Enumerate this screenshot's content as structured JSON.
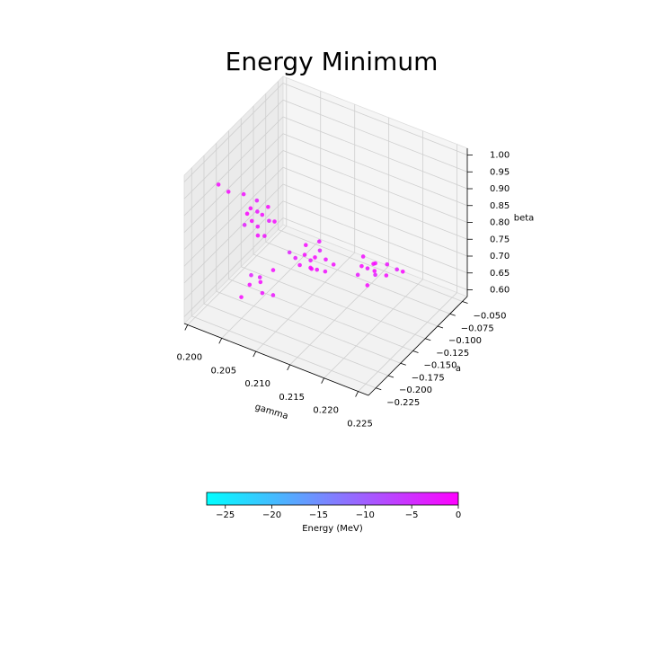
{
  "chart_data": {
    "type": "scatter3d",
    "title": "Energy Minimum",
    "xlabel": "gamma",
    "ylabel": "a",
    "zlabel": "beta",
    "xlim": [
      0.1995,
      0.2265
    ],
    "ylim": [
      -0.24,
      -0.04
    ],
    "zlim": [
      0.58,
      1.02
    ],
    "xticks": [
      {
        "value": 0.2,
        "label": "0.200"
      },
      {
        "value": 0.205,
        "label": "0.205"
      },
      {
        "value": 0.21,
        "label": "0.210"
      },
      {
        "value": 0.215,
        "label": "0.215"
      },
      {
        "value": 0.22,
        "label": "0.220"
      },
      {
        "value": 0.225,
        "label": "0.225"
      }
    ],
    "yticks": [
      {
        "value": -0.225,
        "label": "−0.225"
      },
      {
        "value": -0.2,
        "label": "−0.200"
      },
      {
        "value": -0.175,
        "label": "−0.175"
      },
      {
        "value": -0.15,
        "label": "−0.150"
      },
      {
        "value": -0.125,
        "label": "−0.125"
      },
      {
        "value": -0.1,
        "label": "−0.100"
      },
      {
        "value": -0.075,
        "label": "−0.075"
      },
      {
        "value": -0.05,
        "label": "−0.050"
      }
    ],
    "zticks": [
      {
        "value": 0.6,
        "label": "0.60"
      },
      0.65,
      {
        "value": 0.7,
        "label": "0.70"
      },
      0.75,
      {
        "value": 0.8,
        "label": "0.80"
      },
      0.85,
      {
        "value": 0.9,
        "label": "0.90"
      },
      0.95,
      {
        "value": 1.0,
        "label": "1.00"
      }
    ],
    "grid": true,
    "colorbar_label": "Energy (MeV)",
    "clim": [
      -27,
      0
    ],
    "cticks": [
      {
        "value": -25,
        "label": "−25"
      },
      {
        "value": -20,
        "label": "−20"
      },
      {
        "value": -15,
        "label": "−15"
      },
      {
        "value": -10,
        "label": "−10"
      },
      {
        "value": -5,
        "label": "−5"
      },
      0
    ],
    "colormap": [
      "#00ffff",
      "#ff00ff"
    ],
    "x": [
      0.2009,
      0.202,
      0.2035,
      0.2043,
      0.205,
      0.2047,
      0.2055,
      0.204,
      0.206,
      0.2052,
      0.2065,
      0.2038,
      0.2058,
      0.2045,
      0.2068,
      0.2062,
      0.211,
      0.2115,
      0.212,
      0.2105,
      0.2125,
      0.2118,
      0.213,
      0.21,
      0.2112,
      0.2128,
      0.2122,
      0.2108,
      0.2135,
      0.2095,
      0.214,
      0.215,
      0.2155,
      0.216,
      0.2148,
      0.2165,
      0.2158,
      0.217,
      0.2145,
      0.2162,
      0.2175,
      0.2168,
      0.218,
      0.2185,
      0.208,
      0.209,
      0.2085,
      0.2095,
      0.2075,
      0.21,
      0.207,
      0.2105
    ],
    "y": [
      -0.19,
      -0.185,
      -0.175,
      -0.172,
      -0.168,
      -0.175,
      -0.165,
      -0.18,
      -0.16,
      -0.17,
      -0.165,
      -0.172,
      -0.178,
      -0.162,
      -0.158,
      -0.17,
      -0.155,
      -0.15,
      -0.148,
      -0.158,
      -0.145,
      -0.152,
      -0.14,
      -0.16,
      -0.146,
      -0.155,
      -0.142,
      -0.15,
      -0.148,
      -0.165,
      -0.138,
      -0.095,
      -0.09,
      -0.085,
      -0.1,
      -0.088,
      -0.08,
      -0.095,
      -0.085,
      -0.1,
      -0.078,
      -0.07,
      -0.065,
      -0.06,
      -0.225,
      -0.218,
      -0.21,
      -0.22,
      -0.215,
      -0.205,
      -0.228,
      -0.212
    ],
    "z": [
      0.93,
      0.91,
      0.9,
      0.86,
      0.85,
      0.83,
      0.84,
      0.82,
      0.86,
      0.81,
      0.83,
      0.84,
      0.8,
      0.87,
      0.82,
      0.79,
      0.75,
      0.73,
      0.74,
      0.72,
      0.76,
      0.71,
      0.73,
      0.74,
      0.7,
      0.72,
      0.78,
      0.77,
      0.71,
      0.76,
      0.72,
      0.66,
      0.65,
      0.66,
      0.64,
      0.67,
      0.63,
      0.65,
      0.67,
      0.62,
      0.66,
      0.61,
      0.63,
      0.62,
      0.74,
      0.76,
      0.73,
      0.72,
      0.75,
      0.77,
      0.7,
      0.71
    ],
    "c": [
      -1.2,
      -0.8,
      -1.5,
      -0.6,
      -2.1,
      -0.9,
      -1.3,
      -3.0,
      -0.7,
      -1.8,
      -2.4,
      -0.5,
      -1.1,
      -2.7,
      -0.9,
      -1.6,
      -1.0,
      -2.2,
      -0.7,
      -1.4,
      -3.1,
      -0.9,
      -1.7,
      -2.5,
      -0.6,
      -1.2,
      -2.0,
      -0.8,
      -1.5,
      -3.4,
      -1.1,
      -0.9,
      -1.8,
      -0.6,
      -2.3,
      -1.2,
      -0.8,
      -2.9,
      -1.5,
      -0.7,
      -1.9,
      -1.0,
      -2.6,
      -0.5,
      -1.3,
      -2.4,
      -0.8,
      -1.9,
      -3.2,
      -1.1,
      -0.9,
      -2.0
    ]
  }
}
